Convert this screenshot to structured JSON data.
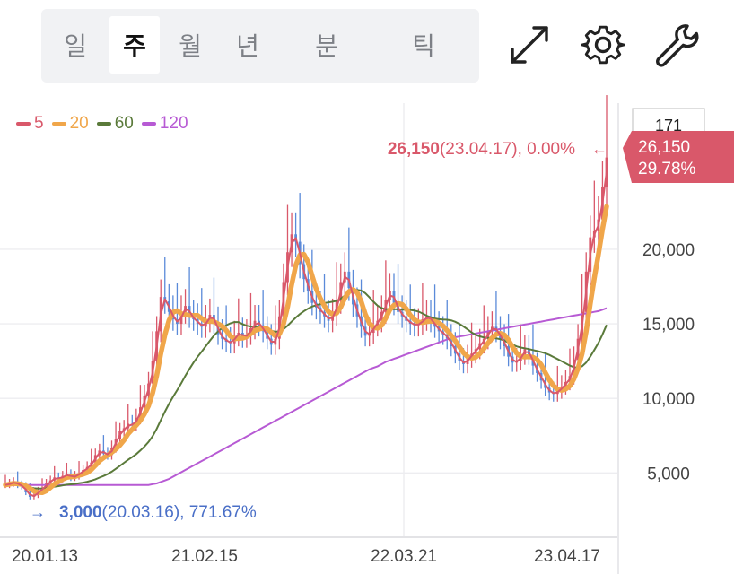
{
  "period_tabs": [
    "일",
    "주",
    "월",
    "년",
    "분",
    "틱"
  ],
  "active_tab": "주",
  "tools": [
    {
      "name": "expand-icon"
    },
    {
      "name": "gear-icon"
    },
    {
      "name": "wrench-icon"
    }
  ],
  "colors": {
    "ma5": "#d9586a",
    "ma20": "#f0a64a",
    "ma60": "#5a7a3a",
    "ma120": "#b75ad4",
    "up": "#d9586a",
    "down": "#5a8ad9",
    "price_tag_bg": "#d9586a",
    "high_text": "#d9586a",
    "low_text": "#4a6fc7"
  },
  "chart_data": {
    "type": "candlestick",
    "legend": [
      {
        "name": "5",
        "color": "#d9586a"
      },
      {
        "name": "20",
        "color": "#f0a64a"
      },
      {
        "name": "60",
        "color": "#5a7a3a"
      },
      {
        "name": "120",
        "color": "#b75ad4"
      }
    ],
    "y_ticks": [
      "5,000",
      "10,000",
      "15,000",
      "20,000"
    ],
    "y_tick_values": [
      5000,
      10000,
      15000,
      20000
    ],
    "ylim": [
      0,
      28600
    ],
    "x_ticks": [
      "20.01.13",
      "21.02.15",
      "22.03.21",
      "23.04.17"
    ],
    "high_annotation": {
      "value": "26,150",
      "detail": "(23.04.17), 0.00%",
      "arrow": "←"
    },
    "low_annotation": {
      "value": "3,000",
      "detail": "(20.03.16), 771.67%",
      "arrow": "→"
    },
    "current_tag": {
      "price": "26,150",
      "change": "29.78%"
    },
    "axis_top_value": "171",
    "close_series": [
      4200,
      4300,
      4400,
      4200,
      4100,
      3700,
      3400,
      3500,
      3800,
      4000,
      4300,
      4500,
      4700,
      4600,
      4800,
      4900,
      4700,
      4800,
      5000,
      5200,
      5400,
      5700,
      6200,
      6500,
      6300,
      6200,
      6700,
      7300,
      7800,
      8000,
      8300,
      8200,
      8700,
      9400,
      10200,
      11000,
      12500,
      14500,
      16800,
      16500,
      15800,
      15300,
      15000,
      15800,
      16200,
      15500,
      15300,
      15000,
      14800,
      15200,
      15600,
      15100,
      14300,
      14000,
      13800,
      13700,
      14200,
      14400,
      14100,
      14300,
      14700,
      15200,
      14900,
      14500,
      14000,
      13600,
      14000,
      15500,
      17800,
      19800,
      21000,
      20500,
      19000,
      18000,
      17200,
      16400,
      16100,
      15800,
      15500,
      15200,
      15600,
      16500,
      17800,
      18500,
      17400,
      16300,
      15500,
      14800,
      14200,
      14400,
      14900,
      15200,
      15800,
      16600,
      17200,
      16400,
      15800,
      15500,
      15200,
      15000,
      14900,
      15000,
      15300,
      15500,
      15200,
      14800,
      14500,
      14300,
      14000,
      13500,
      13000,
      12500,
      12300,
      12700,
      13000,
      13300,
      13700,
      14000,
      14500,
      14800,
      14500,
      14000,
      13500,
      12800,
      12400,
      12500,
      12900,
      13300,
      12900,
      12200,
      11700,
      11200,
      10700,
      10400,
      10300,
      10500,
      10800,
      11100,
      11500,
      12600,
      14000,
      15800,
      18500,
      20800,
      21200,
      22000,
      24200,
      26150
    ],
    "ma120_series": [
      4200,
      4200,
      4200,
      4200,
      4200,
      4200,
      4200,
      4200,
      4200,
      4200,
      4200,
      4200,
      4200,
      4200,
      4200,
      4200,
      4200,
      4200,
      4200,
      4200,
      4200,
      4200,
      4200,
      4200,
      4200,
      4200,
      4200,
      4200,
      4200,
      4200,
      4200,
      4200,
      4200,
      4200,
      4200,
      4200,
      4250,
      4300,
      4400,
      4500,
      4600,
      4750,
      4900,
      5050,
      5200,
      5350,
      5500,
      5650,
      5800,
      5950,
      6100,
      6250,
      6400,
      6550,
      6700,
      6850,
      7000,
      7150,
      7300,
      7450,
      7600,
      7750,
      7900,
      8050,
      8200,
      8350,
      8500,
      8650,
      8800,
      8950,
      9100,
      9250,
      9400,
      9550,
      9700,
      9850,
      10000,
      10150,
      10300,
      10450,
      10600,
      10750,
      10900,
      11050,
      11200,
      11350,
      11500,
      11650,
      11800,
      11950,
      12050,
      12150,
      12300,
      12450,
      12550,
      12650,
      12750,
      12850,
      12950,
      13050,
      13150,
      13250,
      13350,
      13450,
      13550,
      13650,
      13750,
      13850,
      13950,
      14050,
      14100,
      14150,
      14200,
      14250,
      14300,
      14350,
      14400,
      14450,
      14500,
      14550,
      14600,
      14650,
      14700,
      14750,
      14800,
      14850,
      14900,
      14950,
      15000,
      15050,
      15100,
      15150,
      15200,
      15250,
      15300,
      15350,
      15400,
      15450,
      15500,
      15550,
      15600,
      15650,
      15700,
      15750,
      15800,
      15850,
      15950,
      16050
    ]
  }
}
